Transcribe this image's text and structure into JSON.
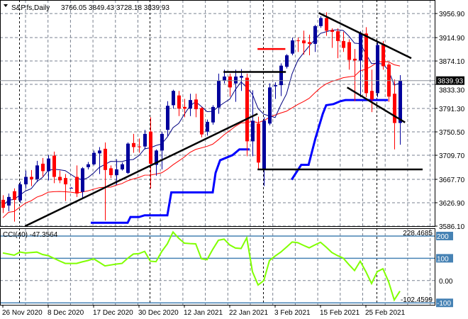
{
  "header": {
    "symbol_label": "S&P.fs,Daily",
    "ohlc_label": "3766.05 3849.43 3728.18 3839.93",
    "menu_icon": "triangle-down-icon"
  },
  "colors": {
    "bull": "#00009c",
    "bear": "#ff0000",
    "ma_fast": "#000080",
    "ma_slow": "#ff0000",
    "trail_line": "#0000ff",
    "cci_line": "#80ff00",
    "cci_levels": "#4682b4",
    "drawn_lines": "#000000",
    "grid": "#7a8290"
  },
  "chart_data": [
    {
      "type": "candlestick",
      "panel": "price",
      "title": "S&P.fs,Daily",
      "x_tick_labels": [
        "26 Nov 2020",
        "8 Dec 2020",
        "17 Dec 2020",
        "30 Dec 2020",
        "12 Jan 2021",
        "22 Jan 2021",
        "3 Feb 2021",
        "15 Feb 2021",
        "25 Feb 2021"
      ],
      "y_tick_labels": [
        "3956.90",
        "3914.90",
        "3874.10",
        "3833.30",
        "3791.30",
        "3750.50",
        "3709.70",
        "3667.70",
        "3626.90",
        "3586.10"
      ],
      "ylim": [
        3586.1,
        3980.5
      ],
      "grid": true,
      "current_price_label": "3839.93",
      "candles_ohlc": [
        [
          3632,
          3640,
          3609,
          3618
        ],
        [
          3622,
          3643,
          3612,
          3637
        ],
        [
          3647,
          3652,
          3594,
          3632
        ],
        [
          3631,
          3664,
          3627,
          3659
        ],
        [
          3659,
          3683,
          3652,
          3672
        ],
        [
          3672,
          3684,
          3656,
          3668
        ],
        [
          3668,
          3700,
          3663,
          3692
        ],
        [
          3695,
          3705,
          3672,
          3682
        ],
        [
          3682,
          3710,
          3666,
          3704
        ],
        [
          3709,
          3716,
          3661,
          3672
        ],
        [
          3672,
          3683,
          3661,
          3666
        ],
        [
          3670,
          3677,
          3630,
          3659
        ],
        [
          3653,
          3654,
          3652,
          3653
        ],
        [
          3672,
          3692,
          3637,
          3643
        ],
        [
          3646,
          3689,
          3636,
          3687
        ],
        [
          3689,
          3698,
          3685,
          3694
        ],
        [
          3694,
          3718,
          3692,
          3714
        ],
        [
          3713,
          3724,
          3677,
          3718
        ],
        [
          3721,
          3732,
          3596,
          3684
        ],
        [
          3687,
          3692,
          3670,
          3675
        ],
        [
          3675,
          3703,
          3658,
          3685
        ],
        [
          3685,
          3697,
          3683,
          3694
        ],
        [
          3679,
          3732,
          3677,
          3730
        ],
        [
          3731,
          3747,
          3714,
          3724
        ],
        [
          3725,
          3739,
          3714,
          3724
        ],
        [
          3725,
          3754,
          3720,
          3747
        ],
        [
          3751,
          3776,
          3652,
          3695
        ],
        [
          3693,
          3720,
          3674,
          3718
        ],
        [
          3718,
          3751,
          3685,
          3747
        ],
        [
          3754,
          3804,
          3742,
          3796
        ],
        [
          3797,
          3824,
          3791,
          3822
        ],
        [
          3814,
          3822,
          3778,
          3791
        ],
        [
          3794,
          3808,
          3776,
          3791
        ],
        [
          3791,
          3817,
          3778,
          3806
        ],
        [
          3807,
          3817,
          3776,
          3790
        ],
        [
          3792,
          3794,
          3741,
          3746
        ],
        [
          3751,
          3772,
          3744,
          3768
        ],
        [
          3767,
          3797,
          3763,
          3794
        ],
        [
          3793,
          3852,
          3782,
          3840
        ],
        [
          3840,
          3859,
          3835,
          3847
        ],
        [
          3847,
          3852,
          3812,
          3828
        ],
        [
          3835,
          3859,
          3803,
          3847
        ],
        [
          3845,
          3860,
          3822,
          3848
        ],
        [
          3845,
          3852,
          3708,
          3734
        ],
        [
          3734,
          3823,
          3708,
          3770
        ],
        [
          3765,
          3777,
          3685,
          3697
        ],
        [
          3685,
          3776,
          3656,
          3770
        ],
        [
          3765,
          3835,
          3762,
          3828
        ],
        [
          3830,
          3837,
          3808,
          3832
        ],
        [
          3832,
          3870,
          3813,
          3866
        ],
        [
          3864,
          3886,
          3861,
          3884
        ],
        [
          3887,
          3915,
          3884,
          3910
        ],
        [
          3910,
          3915,
          3890,
          3909
        ],
        [
          3910,
          3927,
          3885,
          3905
        ],
        [
          3907,
          3920,
          3884,
          3904
        ],
        [
          3904,
          3937,
          3890,
          3935
        ],
        [
          3935,
          3952,
          3932,
          3949
        ],
        [
          3949,
          3959,
          3918,
          3927
        ],
        [
          3928,
          3931,
          3897,
          3925
        ],
        [
          3926,
          3931,
          3879,
          3909
        ],
        [
          3909,
          3925,
          3890,
          3897
        ],
        [
          3907,
          3912,
          3859,
          3876
        ],
        [
          3878,
          3895,
          3804,
          3875
        ],
        [
          3875,
          3926,
          3811,
          3922
        ],
        [
          3922,
          3933,
          3811,
          3818
        ],
        [
          3822,
          3859,
          3785,
          3807
        ],
        [
          3818,
          3906,
          3811,
          3902
        ],
        [
          3904,
          3909,
          3859,
          3865
        ],
        [
          3868,
          3871,
          3803,
          3812
        ],
        [
          3817,
          3842,
          3720,
          3766
        ],
        [
          3766.05,
          3849.43,
          3728.18,
          3839.93
        ]
      ],
      "trailing_line": [
        [
          [
            15.5,
            3592
          ],
          [
            22,
            3592
          ],
          [
            22.5,
            3602
          ],
          [
            24,
            3602
          ],
          [
            25,
            3605
          ],
          [
            29,
            3605
          ],
          [
            29.7,
            3645
          ],
          [
            37,
            3645
          ],
          [
            37.5,
            3679
          ],
          [
            38.3,
            3701
          ],
          [
            40.5,
            3710
          ],
          [
            41.7,
            3720
          ],
          [
            43.5,
            3720
          ]
        ],
        [
          [
            50.9,
            3667
          ],
          [
            52.6,
            3693
          ],
          [
            53.9,
            3693
          ],
          [
            55.1,
            3739
          ],
          [
            56.4,
            3782
          ],
          [
            57,
            3797
          ],
          [
            58.3,
            3799
          ],
          [
            59.5,
            3804
          ],
          [
            60.4,
            3806
          ],
          [
            67.9,
            3806
          ]
        ]
      ],
      "drawn_lines": [
        {
          "name": "uptrend-line",
          "from": [
            3.9,
            3586
          ],
          "to": [
            44.9,
            3782
          ],
          "color": "#000000"
        },
        {
          "name": "resistance-line",
          "from": [
            38.9,
            3855
          ],
          "to": [
            49.9,
            3855
          ],
          "color": "#000000"
        },
        {
          "name": "support-line",
          "from": [
            44.9,
            3685
          ],
          "to": [
            74,
            3685
          ],
          "color": "#000000"
        },
        {
          "name": "channel-upper-line",
          "from": [
            55.7,
            3958
          ],
          "to": [
            72,
            3879
          ],
          "color": "#000000"
        },
        {
          "name": "channel-lower-line",
          "from": [
            60.7,
            3828
          ],
          "to": [
            70.9,
            3767
          ],
          "color": "#000000"
        },
        {
          "name": "red-level-line",
          "from": [
            44.9,
            3895
          ],
          "to": [
            49.8,
            3895
          ],
          "color": "#ff0000"
        }
      ]
    },
    {
      "type": "line",
      "panel": "indicator",
      "title": "CCI(40) -47.3564",
      "levels": [
        200,
        100,
        0,
        -100
      ],
      "level_labels": [
        "200",
        "100",
        "0.00",
        "-100"
      ],
      "range_labels": [
        "228.4685",
        "-102.4599"
      ],
      "ylim": [
        -102.4599,
        228.4685
      ],
      "values": [
        124,
        119,
        114,
        128,
        124,
        126,
        128,
        117,
        112,
        100,
        88,
        77,
        77,
        77,
        84,
        90,
        98,
        82,
        66,
        70,
        74,
        77,
        100,
        119,
        121,
        131,
        87,
        85,
        130,
        165,
        218,
        190,
        168,
        166,
        165,
        98,
        94,
        140,
        181,
        186,
        160,
        146,
        144,
        192,
        40,
        -20,
        0,
        90,
        110,
        128,
        150,
        173,
        170,
        158,
        147,
        160,
        172,
        150,
        126,
        112,
        101,
        72,
        45,
        87,
        40,
        -13,
        40,
        53,
        -5,
        -87,
        -47.36
      ]
    }
  ]
}
